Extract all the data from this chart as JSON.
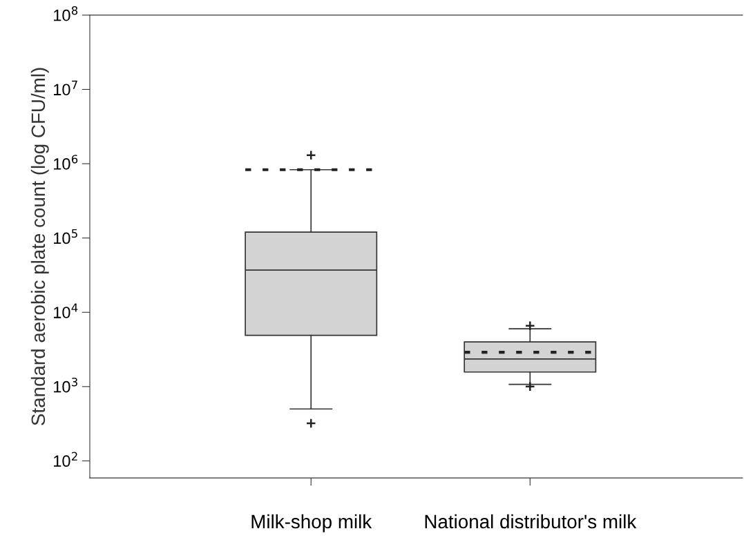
{
  "chart_data": {
    "type": "box",
    "ylabel": "Standard aerobic plate count (log CFU/ml)",
    "categories": [
      "Milk-shop milk",
      "National distributor's milk"
    ],
    "boxes": [
      {
        "low": 500,
        "q1": 4900,
        "median": 37000,
        "q3": 120000,
        "high": 830000,
        "mean": 830000,
        "outliers": [
          1300000,
          320
        ]
      },
      {
        "low": 1070,
        "q1": 1570,
        "median": 2350,
        "q3": 4000,
        "high": 6000,
        "mean": 2900,
        "outliers": [
          6600,
          1000
        ]
      }
    ],
    "color": "#d3d3d3",
    "log": "y",
    "ylim": [
      59,
      100000000
    ],
    "yticks": [
      {
        "value": 100,
        "label": "10$^{2}$"
      },
      {
        "value": 1000,
        "label": "10$^{3}$"
      },
      {
        "value": 10000,
        "label": "10$^{4}$"
      },
      {
        "value": 100000,
        "label": "10$^{5}$"
      },
      {
        "value": 1000000,
        "label": "10$^{6}$"
      },
      {
        "value": 10000000,
        "label": "10$^{7}$"
      },
      {
        "value": 100000000,
        "label": "10$^{8}$"
      }
    ],
    "grid": false
  }
}
